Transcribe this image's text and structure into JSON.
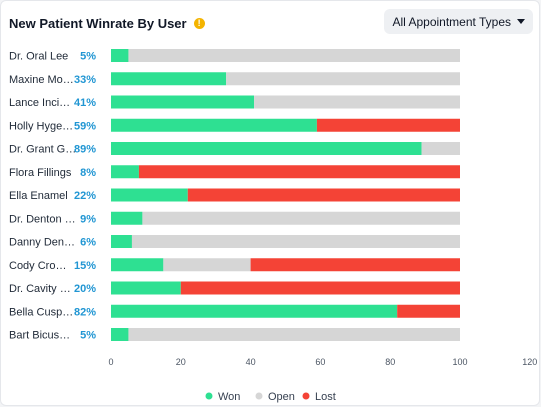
{
  "header": {
    "title": "New Patient Winrate By User",
    "info_icon": "info-icon",
    "dropdown_label": "All Appointment Types"
  },
  "colors": {
    "won": "#2ee092",
    "open": "#d6d6d6",
    "lost": "#f44336",
    "pct": "#2196d3"
  },
  "chart_data": {
    "type": "bar",
    "orientation": "horizontal",
    "stacked": true,
    "categories": [
      "Dr. Oral Lee",
      "Maxine Mo…",
      "Lance Inci…",
      "Holly Hyge…",
      "Dr. Grant G…",
      "Flora Fillings",
      "Ella Enamel",
      "Dr. Denton …",
      "Danny Den…",
      "Cody Cro…",
      "Dr. Cavity …",
      "Bella Cusp…",
      "Bart Bicus…"
    ],
    "winrate_labels": [
      "5%",
      "33%",
      "41%",
      "59%",
      "89%",
      "8%",
      "22%",
      "9%",
      "6%",
      "15%",
      "20%",
      "82%",
      "5%"
    ],
    "series": [
      {
        "name": "Won",
        "values": [
          5,
          33,
          41,
          59,
          89,
          8,
          22,
          9,
          6,
          15,
          20,
          82,
          5
        ]
      },
      {
        "name": "Open",
        "values": [
          95,
          67,
          59,
          0,
          11,
          0,
          0,
          91,
          94,
          25,
          0,
          0,
          95
        ]
      },
      {
        "name": "Lost",
        "values": [
          0,
          0,
          0,
          41,
          0,
          92,
          78,
          0,
          0,
          60,
          80,
          18,
          0
        ]
      }
    ],
    "xlim": [
      0,
      120
    ],
    "xticks": [
      0,
      20,
      40,
      60,
      80,
      100,
      120
    ],
    "legend": {
      "position": "bottom",
      "labels": [
        "Won",
        "Open",
        "Lost"
      ]
    }
  }
}
